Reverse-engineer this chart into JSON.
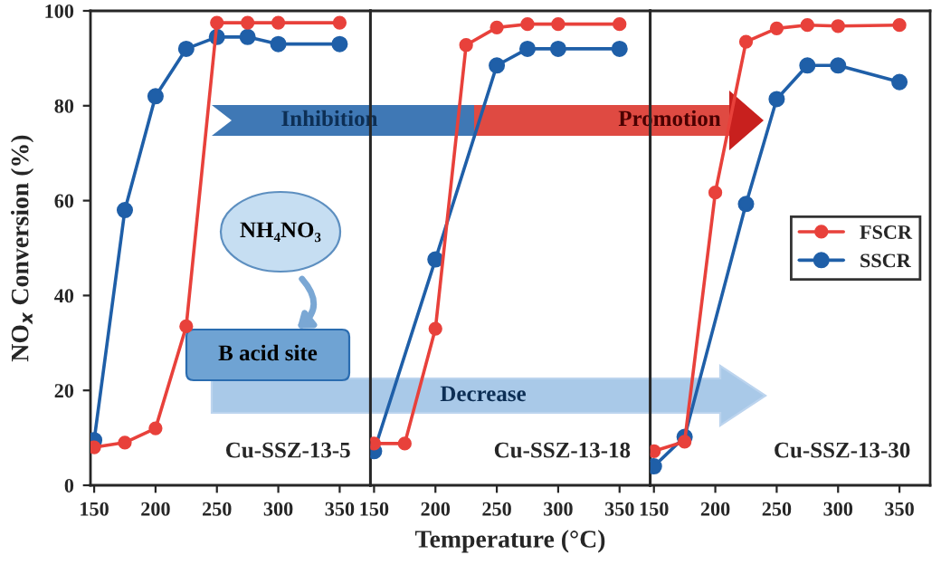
{
  "chart_data": [
    {
      "type": "line",
      "xlim": [
        147,
        375
      ],
      "xticks": [
        150,
        200,
        250,
        300,
        350
      ],
      "ylim": [
        0,
        100
      ],
      "yticks": [
        0,
        20,
        40,
        60,
        80,
        100
      ],
      "ylabel": "NO$_{x}$ Conversion (%)",
      "marker": "circle",
      "line_style": "solid",
      "grid": false,
      "x": [
        150,
        175,
        200,
        225,
        250,
        275,
        300,
        350
      ],
      "series": [
        {
          "color": "#e8413b",
          "values": [
            8,
            9,
            12,
            33.5,
            97.5,
            97.5,
            97.5,
            97.5
          ]
        },
        {
          "color": "#1f5fa8",
          "values": [
            9.5,
            58,
            82,
            92,
            94.5,
            94.5,
            93,
            93
          ]
        }
      ],
      "annotations": [
        "Cu-SSZ-13-5",
        "Inhibition",
        "Promotion",
        "NH₄NO₃",
        "B acid site",
        "Decrease"
      ]
    },
    {
      "type": "line",
      "xlim": [
        147,
        375
      ],
      "xticks": [
        150,
        200,
        250,
        300,
        350
      ],
      "ylim": [
        0,
        100
      ],
      "tick_labels": "x",
      "xlabel": "Temperature (°C)",
      "marker": "circle",
      "line_style": "solid",
      "grid": false,
      "x": [
        150,
        175,
        200,
        225,
        250,
        275,
        300,
        350
      ],
      "series": [
        {
          "color": "#e8413b",
          "values": [
            8.8,
            8.8,
            33,
            92.8,
            96.5,
            97.2,
            97.2,
            97.2
          ]
        },
        {
          "color": "#1f5fa8",
          "values": [
            7.2,
            null,
            47.6,
            null,
            88.5,
            92,
            92,
            92
          ]
        }
      ],
      "annotations": [
        "Cu-SSZ-13-18"
      ]
    },
    {
      "type": "line",
      "xlim": [
        147,
        375
      ],
      "xticks": [
        150,
        200,
        250,
        300,
        350
      ],
      "ylim": [
        0,
        100
      ],
      "tick_labels": "x",
      "marker": "circle",
      "line_style": "solid",
      "grid": false,
      "legend": "center right",
      "x": [
        150,
        175,
        200,
        225,
        250,
        275,
        300,
        350
      ],
      "series": [
        {
          "name": "FSCR",
          "color": "#e8413b",
          "values": [
            7.2,
            9.2,
            61.7,
            93.5,
            96.3,
            97,
            96.8,
            97
          ]
        },
        {
          "name": "SSCR",
          "color": "#1f5fa8",
          "values": [
            4,
            10.2,
            null,
            59.3,
            81.4,
            88.5,
            88.5,
            85
          ]
        }
      ],
      "annotations": [
        "Cu-SSZ-13-30"
      ]
    }
  ]
}
